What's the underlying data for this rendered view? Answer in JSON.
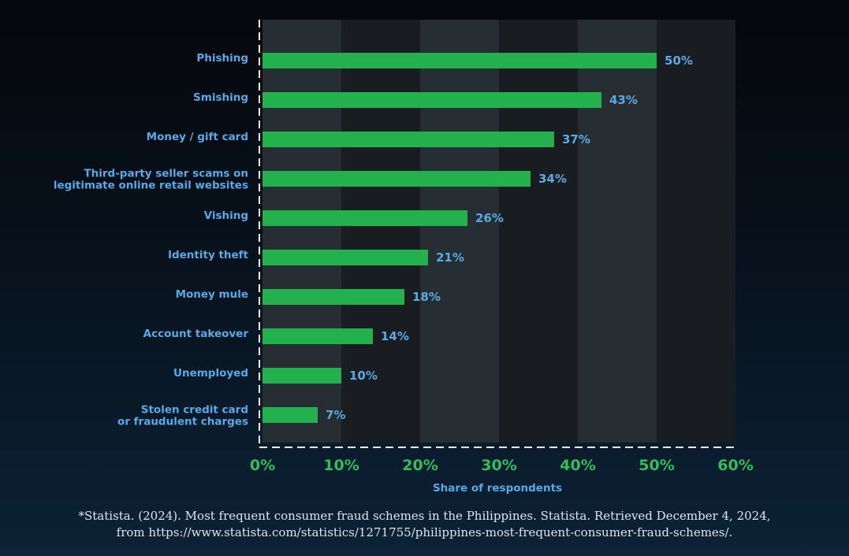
{
  "colors": {
    "bar": "#22b14c",
    "label": "#5aa9e6",
    "tick": "#2fbf5f",
    "band_light": "#262d33",
    "band_dark": "#191d21",
    "axis": "#f2f2f2"
  },
  "chart_data": {
    "type": "bar",
    "orientation": "horizontal",
    "categories": [
      [
        "Phishing"
      ],
      [
        "Smishing"
      ],
      [
        "Money / gift card"
      ],
      [
        "Third-party seller scams on",
        "legitimate online retail websites"
      ],
      [
        "Vishing"
      ],
      [
        "Identity theft"
      ],
      [
        "Money mule"
      ],
      [
        "Account takeover"
      ],
      [
        "Unemployed"
      ],
      [
        "Stolen credit card",
        "or fraudulent charges"
      ]
    ],
    "values": [
      50,
      43,
      37,
      34,
      26,
      21,
      18,
      14,
      10,
      7
    ],
    "value_labels": [
      "50%",
      "43%",
      "37%",
      "34%",
      "26%",
      "21%",
      "18%",
      "14%",
      "10%",
      "7%"
    ],
    "xlabel": "Share of respondents",
    "xlim": [
      0,
      60
    ],
    "xticks": [
      "0%",
      "10%",
      "20%",
      "30%",
      "40%",
      "50%",
      "60%"
    ],
    "grid": "alternating vertical bands"
  },
  "source": {
    "line1": "*Statista. (2024). Most frequent consumer fraud schemes in the Philippines. Statista. Retrieved December 4, 2024,",
    "line2": "from https://www.statista.com/statistics/1271755/philippines-most-frequent-consumer-fraud-schemes/."
  }
}
